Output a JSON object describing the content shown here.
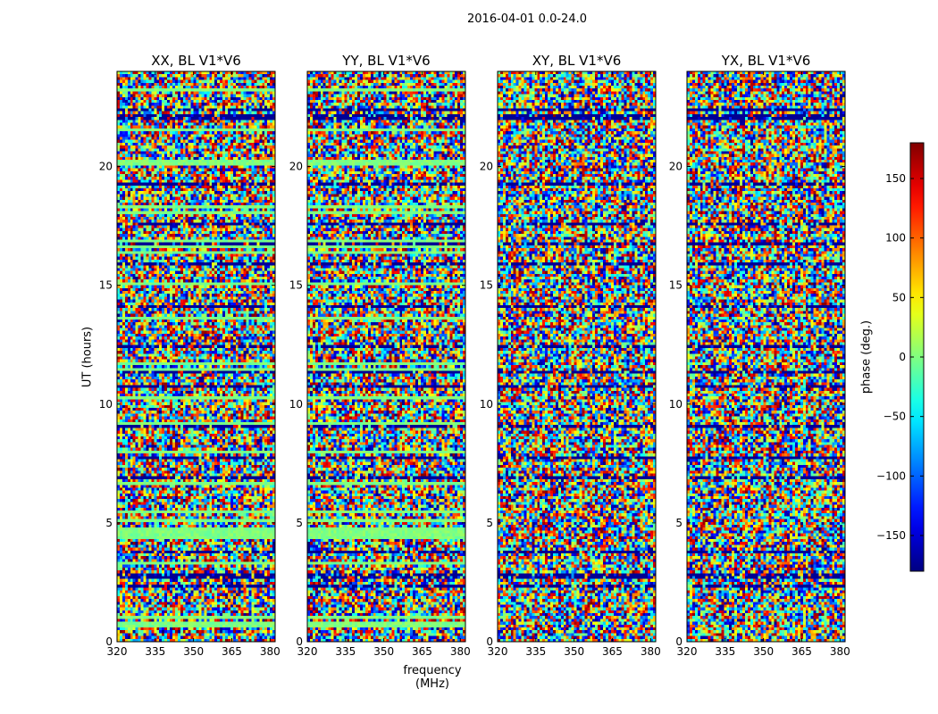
{
  "figure_title": "2016-04-01 0.0-24.0",
  "chart_data": {
    "type": "heatmap",
    "colormap": "jet",
    "xlabel": "frequency (MHz)",
    "ylabel": "UT (hours)",
    "xlim": [
      320,
      382
    ],
    "ylim": [
      0,
      24
    ],
    "x_ticks": [
      320,
      335,
      350,
      365,
      380
    ],
    "y_ticks": [
      0,
      5,
      10,
      15,
      20
    ],
    "colorbar": {
      "label": "phase (deg.)",
      "range": [
        -180,
        180
      ],
      "ticks": [
        -150,
        -100,
        -50,
        0,
        50,
        100,
        150
      ],
      "tick_labels": [
        "−150",
        "−100",
        "−50",
        "0",
        "50",
        "100",
        "150"
      ]
    },
    "panels": [
      {
        "title": "XX, BL V1*V6"
      },
      {
        "title": "YY, BL V1*V6"
      },
      {
        "title": "XY, BL V1*V6"
      },
      {
        "title": "YX, BL V1*V6"
      }
    ]
  }
}
